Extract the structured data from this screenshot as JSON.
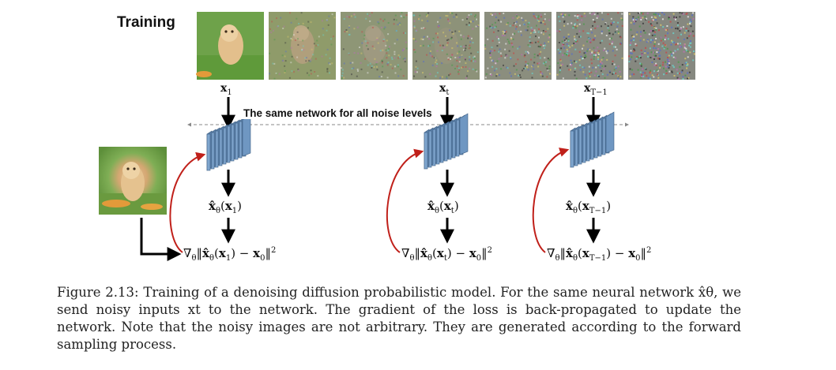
{
  "diagram": {
    "title": "Training",
    "network_label": "The same network for all noise levels",
    "timesteps": [
      {
        "input_label": "x",
        "input_sub": "1",
        "prediction_var": "x",
        "prediction_sub": "1",
        "loss_var": "x",
        "loss_sub": "1"
      },
      {
        "input_label": "x",
        "input_sub": "t",
        "prediction_var": "x",
        "prediction_sub": "t",
        "loss_var": "x",
        "loss_sub": "t"
      },
      {
        "input_label": "x",
        "input_sub": "T−1",
        "prediction_var": "x",
        "prediction_sub": "T−1",
        "loss_var": "x",
        "loss_sub": "T−1"
      }
    ],
    "noisy_image_count": 7,
    "colors": {
      "network_face": "#7FA6CE",
      "network_edge": "#3E5F84",
      "arrow": "#000000",
      "backprop_arrow": "#C0201A",
      "dashed_line": "#888888"
    }
  },
  "caption": {
    "text": "Figure 2.13: Training of a denoising diffusion probabilistic model. For the same neural network x̂θ, we send noisy inputs xt to the network. The gradient of the loss is back-propagated to update the network. Note that the noisy images are not arbitrary. They are generated according to the forward sampling process."
  }
}
